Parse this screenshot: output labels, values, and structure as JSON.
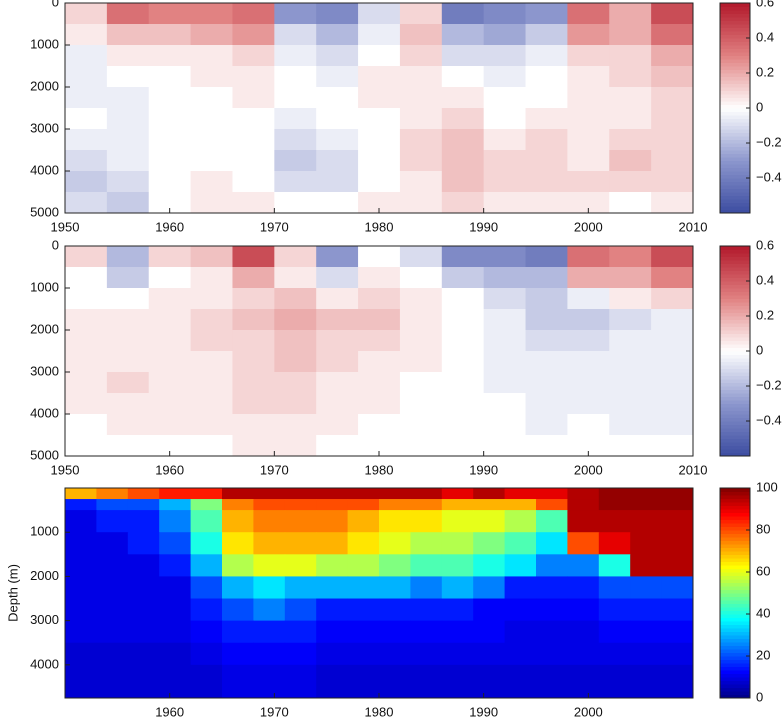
{
  "chart_data": [
    {
      "type": "heatmap",
      "colormap": "RdBu",
      "x": [
        1950,
        1954,
        1958,
        1962,
        1966,
        1970,
        1974,
        1978,
        1982,
        1986,
        1990,
        1994,
        1998,
        2002,
        2006,
        2010
      ],
      "y": [
        0,
        500,
        1000,
        1500,
        2000,
        2500,
        3000,
        3500,
        4000,
        4500,
        5000
      ],
      "z": [
        [
          0.1,
          0.35,
          0.3,
          0.3,
          0.35,
          -0.3,
          -0.35,
          -0.1,
          0.1,
          -0.4,
          -0.35,
          -0.3,
          0.35,
          0.2,
          0.45
        ],
        [
          0.05,
          0.15,
          0.15,
          0.2,
          0.25,
          -0.1,
          -0.2,
          -0.05,
          0.15,
          -0.2,
          -0.25,
          -0.15,
          0.25,
          0.2,
          0.35
        ],
        [
          -0.05,
          0.05,
          0.05,
          0.05,
          0.1,
          -0.05,
          -0.1,
          0,
          0.1,
          -0.1,
          -0.1,
          -0.05,
          0.1,
          0.1,
          0.2
        ],
        [
          -0.05,
          0,
          0,
          0.05,
          0.05,
          0,
          -0.05,
          0.05,
          0.05,
          0,
          -0.05,
          0,
          0.05,
          0.1,
          0.15
        ],
        [
          -0.05,
          -0.05,
          0,
          0,
          0.05,
          0,
          0,
          0.05,
          0.05,
          0.05,
          0,
          0,
          0.05,
          0.05,
          0.1
        ],
        [
          0,
          -0.05,
          0,
          0,
          0,
          -0.05,
          0,
          0,
          0.05,
          0.1,
          0,
          0.05,
          0.05,
          0.05,
          0.1
        ],
        [
          -0.05,
          -0.05,
          0,
          0,
          0,
          -0.1,
          -0.05,
          0,
          0.1,
          0.15,
          0.05,
          0.1,
          0.05,
          0.1,
          0.1
        ],
        [
          -0.1,
          -0.05,
          0,
          0,
          0,
          -0.15,
          -0.1,
          0,
          0.1,
          0.15,
          0.1,
          0.1,
          0.05,
          0.15,
          0.1
        ],
        [
          -0.15,
          -0.1,
          0,
          0.05,
          0,
          -0.1,
          -0.1,
          0,
          0.05,
          0.15,
          0.1,
          0.1,
          0.1,
          0.1,
          0.1
        ],
        [
          -0.1,
          -0.15,
          0,
          0.05,
          0.05,
          0,
          0,
          0.05,
          0.05,
          0.1,
          0.05,
          0.05,
          0.05,
          0,
          0.05
        ]
      ],
      "xlim": [
        1950,
        2010
      ],
      "xticks": [
        1950,
        1960,
        1970,
        1980,
        1990,
        2000,
        2010
      ],
      "ylim": [
        0,
        5000
      ],
      "y_inverted": true,
      "yticks": [
        0,
        1000,
        2000,
        3000,
        4000,
        5000
      ],
      "clim": [
        -0.6,
        0.6
      ],
      "cticks": [
        {
          "value": -0.4,
          "label": "−0.4"
        },
        {
          "value": -0.2,
          "label": "−0.2"
        },
        0,
        0.2,
        0.4,
        0.6
      ]
    },
    {
      "type": "heatmap",
      "colormap": "RdBu",
      "x": [
        1950,
        1954,
        1958,
        1962,
        1966,
        1970,
        1974,
        1978,
        1982,
        1986,
        1990,
        1994,
        1998,
        2002,
        2006,
        2010
      ],
      "y": [
        0,
        500,
        1000,
        1500,
        2000,
        2500,
        3000,
        3500,
        4000,
        4500,
        5000
      ],
      "z": [
        [
          0.1,
          -0.2,
          0.1,
          0.15,
          0.45,
          0.1,
          -0.3,
          0,
          -0.1,
          -0.35,
          -0.35,
          -0.4,
          0.35,
          0.3,
          0.45
        ],
        [
          0,
          -0.15,
          0,
          0.05,
          0.2,
          0.05,
          -0.1,
          0.05,
          0,
          -0.15,
          -0.2,
          -0.2,
          0.2,
          0.2,
          0.3
        ],
        [
          0,
          0,
          0.05,
          0.05,
          0.1,
          0.15,
          0.05,
          0.1,
          0.05,
          0,
          -0.1,
          -0.15,
          -0.05,
          0.05,
          0.1
        ],
        [
          0.05,
          0.05,
          0.05,
          0.1,
          0.15,
          0.2,
          0.15,
          0.15,
          0.05,
          0,
          -0.05,
          -0.15,
          -0.15,
          -0.1,
          -0.05
        ],
        [
          0.05,
          0.05,
          0.05,
          0.1,
          0.1,
          0.15,
          0.1,
          0.1,
          0.05,
          0,
          -0.05,
          -0.1,
          -0.1,
          -0.05,
          -0.05
        ],
        [
          0.05,
          0.05,
          0.05,
          0.05,
          0.1,
          0.15,
          0.1,
          0.05,
          0.05,
          0,
          -0.05,
          -0.05,
          -0.05,
          -0.05,
          -0.05
        ],
        [
          0.05,
          0.1,
          0.05,
          0.05,
          0.1,
          0.1,
          0.05,
          0.05,
          0,
          0,
          -0.05,
          -0.05,
          -0.05,
          -0.05,
          -0.05
        ],
        [
          0.05,
          0.05,
          0.05,
          0.05,
          0.1,
          0.1,
          0.05,
          0.05,
          0,
          0,
          0,
          -0.05,
          -0.05,
          -0.05,
          -0.05
        ],
        [
          0,
          0.05,
          0.05,
          0.05,
          0.05,
          0.05,
          0.05,
          0,
          0,
          0,
          0,
          -0.05,
          0,
          -0.05,
          -0.05
        ],
        [
          0,
          0,
          0,
          0,
          0.05,
          0.05,
          0,
          0,
          0,
          0,
          0,
          0,
          0,
          0,
          0
        ]
      ],
      "xlim": [
        1950,
        2010
      ],
      "xticks": [
        1950,
        1960,
        1970,
        1980,
        1990,
        2000,
        2010
      ],
      "ylim": [
        0,
        5000
      ],
      "y_inverted": true,
      "yticks": [
        0,
        1000,
        2000,
        3000,
        4000,
        5000
      ],
      "clim": [
        -0.6,
        0.6
      ],
      "cticks": [
        {
          "value": -0.4,
          "label": "−0.4"
        },
        {
          "value": -0.2,
          "label": "−0.2"
        },
        0,
        0.2,
        0.4,
        0.6
      ]
    },
    {
      "type": "heatmap",
      "colormap": "jet",
      "y_label": "Depth (m)",
      "x": [
        1950,
        1953,
        1956,
        1959,
        1962,
        1965,
        1968,
        1971,
        1974,
        1977,
        1980,
        1983,
        1986,
        1989,
        1992,
        1995,
        1998,
        2001,
        2004,
        2007,
        2010
      ],
      "y": [
        0,
        250,
        500,
        1000,
        1500,
        2000,
        2500,
        3000,
        3500,
        4000,
        4750
      ],
      "z": [
        [
          70,
          75,
          80,
          85,
          85,
          95,
          95,
          95,
          95,
          95,
          95,
          95,
          90,
          95,
          90,
          90,
          95,
          98,
          98,
          98
        ],
        [
          15,
          20,
          20,
          30,
          50,
          75,
          80,
          80,
          80,
          80,
          75,
          75,
          70,
          70,
          70,
          80,
          95,
          98,
          98,
          98
        ],
        [
          10,
          15,
          15,
          25,
          45,
          70,
          75,
          75,
          75,
          70,
          65,
          65,
          60,
          60,
          55,
          45,
          95,
          95,
          95,
          95
        ],
        [
          10,
          10,
          15,
          20,
          40,
          65,
          70,
          70,
          70,
          65,
          60,
          55,
          55,
          50,
          45,
          35,
          80,
          90,
          95,
          95
        ],
        [
          10,
          10,
          10,
          15,
          30,
          55,
          60,
          60,
          55,
          55,
          50,
          45,
          45,
          40,
          35,
          25,
          25,
          40,
          95,
          95
        ],
        [
          10,
          10,
          10,
          10,
          20,
          30,
          35,
          30,
          30,
          30,
          30,
          25,
          30,
          25,
          15,
          15,
          15,
          20,
          20,
          20
        ],
        [
          10,
          10,
          10,
          10,
          15,
          20,
          25,
          20,
          15,
          15,
          15,
          15,
          15,
          12,
          12,
          12,
          12,
          15,
          15,
          15
        ],
        [
          10,
          10,
          10,
          10,
          12,
          15,
          15,
          15,
          12,
          12,
          12,
          12,
          12,
          12,
          10,
          10,
          10,
          12,
          12,
          12
        ],
        [
          8,
          8,
          8,
          8,
          10,
          12,
          12,
          12,
          10,
          10,
          10,
          10,
          10,
          10,
          10,
          10,
          10,
          10,
          10,
          10
        ],
        [
          8,
          8,
          8,
          8,
          8,
          10,
          10,
          10,
          8,
          8,
          8,
          8,
          8,
          8,
          8,
          8,
          8,
          8,
          8,
          8
        ]
      ],
      "xlim": [
        1950,
        2010
      ],
      "xticks": [
        1960,
        1970,
        1980,
        1990,
        2000
      ],
      "ylim": [
        0,
        4750
      ],
      "y_inverted": true,
      "yticks": [
        1000,
        2000,
        3000,
        4000
      ],
      "clim": [
        0,
        100
      ],
      "cticks": [
        0,
        20,
        40,
        60,
        80,
        100
      ]
    }
  ]
}
